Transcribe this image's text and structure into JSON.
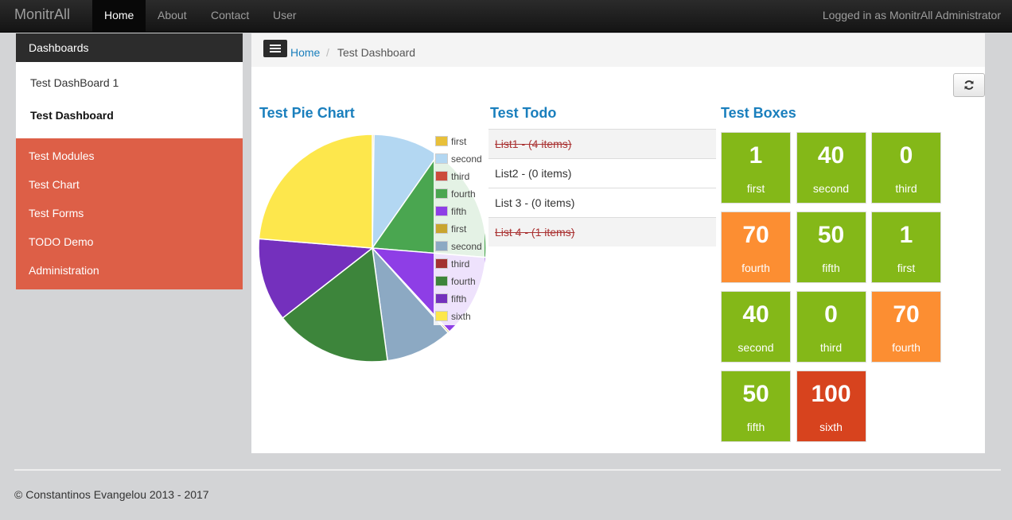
{
  "navbar": {
    "brand": "MonitrAll",
    "items": [
      {
        "label": "Home",
        "active": true
      },
      {
        "label": "About"
      },
      {
        "label": "Contact"
      },
      {
        "label": "User"
      }
    ],
    "logged_in": "Logged in as MonitrAll Administrator"
  },
  "sidebar": {
    "header": "Dashboards",
    "dashboards": [
      {
        "label": "Test DashBoard 1",
        "active": false
      },
      {
        "label": "Test Dashboard",
        "active": true
      }
    ],
    "menu": [
      "Test Modules",
      "Test Chart",
      "Test Forms",
      "TODO Demo",
      "Administration"
    ]
  },
  "breadcrumb": {
    "home": "Home",
    "separator": "/",
    "current": "Test Dashboard"
  },
  "pie_widget": {
    "title": "Test Pie Chart"
  },
  "chart_data": {
    "type": "pie",
    "slices": [
      {
        "label": "first",
        "value": 1,
        "color": "#e8c03a"
      },
      {
        "label": "second",
        "value": 40,
        "color": "#b3d7f2"
      },
      {
        "label": "third",
        "value": 0,
        "color": "#cc4b3c"
      },
      {
        "label": "fourth",
        "value": 70,
        "color": "#4aa650"
      },
      {
        "label": "fifth",
        "value": 50,
        "color": "#8e3ee6"
      },
      {
        "label": "first",
        "value": 1,
        "color": "#c8a52f"
      },
      {
        "label": "second",
        "value": 40,
        "color": "#8ca9c3"
      },
      {
        "label": "third",
        "value": 0,
        "color": "#a33232"
      },
      {
        "label": "fourth",
        "value": 70,
        "color": "#3d853b"
      },
      {
        "label": "fifth",
        "value": 50,
        "color": "#7430bd"
      },
      {
        "label": "sixth",
        "value": 100,
        "color": "#fde74c"
      }
    ],
    "legend": "top-right"
  },
  "todo_widget": {
    "title": "Test Todo",
    "lists": [
      {
        "label": "List1 - (4 items)",
        "done": true
      },
      {
        "label": "List2 - (0 items)",
        "done": false
      },
      {
        "label": "List 3 - (0 items)",
        "done": false
      },
      {
        "label": "List 4 - (1 items)",
        "done": true
      }
    ]
  },
  "boxes_widget": {
    "title": "Test Boxes",
    "boxes": [
      {
        "value": "1",
        "label": "first",
        "color": "#84b818"
      },
      {
        "value": "40",
        "label": "second",
        "color": "#84b818"
      },
      {
        "value": "0",
        "label": "third",
        "color": "#84b818"
      },
      {
        "value": "70",
        "label": "fourth",
        "color": "#fc8e32"
      },
      {
        "value": "50",
        "label": "fifth",
        "color": "#84b818"
      },
      {
        "value": "1",
        "label": "first",
        "color": "#84b818"
      },
      {
        "value": "40",
        "label": "second",
        "color": "#84b818"
      },
      {
        "value": "0",
        "label": "third",
        "color": "#84b818"
      },
      {
        "value": "70",
        "label": "fourth",
        "color": "#fc8e32"
      },
      {
        "value": "50",
        "label": "fifth",
        "color": "#84b818"
      },
      {
        "value": "100",
        "label": "sixth",
        "color": "#d7431e"
      }
    ]
  },
  "footer": {
    "text": "© Constantinos Evangelou 2013 - 2017"
  }
}
